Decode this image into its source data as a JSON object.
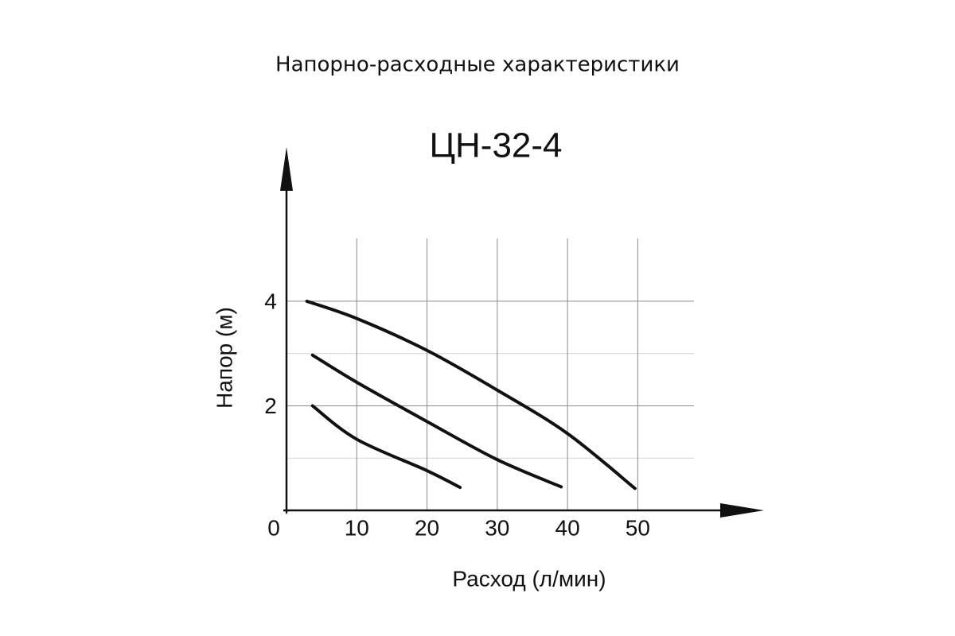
{
  "chart_data": {
    "type": "line",
    "title": "Напорно-расходные характеристики",
    "subtitle": "ЦН-32-4",
    "x_label": "Расход (л/мин)",
    "y_label": "Напор (м)",
    "series": [
      {
        "color": "#111111",
        "x": [
          2.9,
          10,
          20,
          30,
          40,
          49.6
        ],
        "values": [
          4.0,
          3.67,
          3.06,
          2.3,
          1.47,
          0.42
        ]
      },
      {
        "color": "#111111",
        "x": [
          3.7,
          10,
          20,
          30,
          39.1
        ],
        "values": [
          2.97,
          2.45,
          1.7,
          0.97,
          0.45
        ]
      },
      {
        "color": "#111111",
        "x": [
          3.7,
          10,
          20,
          24.7
        ],
        "values": [
          2.0,
          1.36,
          0.76,
          0.44
        ]
      }
    ],
    "xlim": [
      0,
      58
    ],
    "ylim": [
      0,
      5.2
    ],
    "xticks": [
      0,
      10,
      20,
      30,
      40,
      50
    ],
    "yticks": [
      2,
      4
    ],
    "y_minor_grid": [
      1,
      3
    ],
    "grid": true
  }
}
